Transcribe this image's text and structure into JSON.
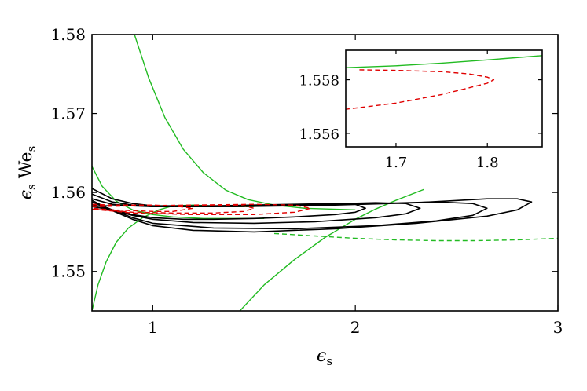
{
  "chart_data": [
    {
      "type": "line",
      "xlabel": "ϵs",
      "ylabel": "ϵs Wes",
      "xlim": [
        0.7,
        3.0
      ],
      "ylim": [
        1.545,
        1.58
      ],
      "xticks": [
        1,
        2,
        3
      ],
      "xtick_labels": [
        "1",
        "2",
        "3"
      ],
      "yticks": [
        1.55,
        1.56,
        1.57,
        1.58
      ],
      "ytick_labels": [
        "1.55",
        "1.56",
        "1.57",
        "1.58"
      ],
      "grid": false,
      "colors": {
        "green": "#22bb22",
        "red": "#e00000",
        "black": "#000000"
      },
      "series": [
        {
          "color": "green",
          "style": "solid",
          "x": [
            0.91,
            0.98,
            1.06,
            1.15,
            1.25,
            1.36,
            1.47,
            1.6,
            1.75,
            2.0
          ],
          "y": [
            1.58,
            1.5745,
            1.5695,
            1.5655,
            1.5625,
            1.5603,
            1.5591,
            1.5584,
            1.558,
            1.5578
          ]
        },
        {
          "color": "green",
          "style": "solid",
          "x": [
            0.7,
            0.75,
            0.82,
            0.9,
            1.0,
            1.1,
            1.25,
            1.4,
            1.55
          ],
          "y": [
            1.5633,
            1.5608,
            1.5589,
            1.5578,
            1.5572,
            1.5569,
            1.5567,
            1.5567,
            1.5567
          ]
        },
        {
          "color": "green",
          "style": "solid",
          "x": [
            0.7,
            0.73,
            0.77,
            0.82,
            0.88,
            0.95,
            1.03,
            1.1,
            1.2,
            1.3,
            1.4,
            1.5
          ],
          "y": [
            1.545,
            1.5483,
            1.5512,
            1.5537,
            1.5555,
            1.5568,
            1.5578,
            1.5583,
            1.5584,
            1.5583,
            1.5582,
            1.5582
          ]
        },
        {
          "color": "green",
          "style": "solid",
          "x": [
            1.43,
            1.55,
            1.7,
            1.85,
            2.0,
            2.1,
            2.2,
            2.34
          ],
          "y": [
            1.545,
            1.5483,
            1.5515,
            1.5543,
            1.5566,
            1.5579,
            1.559,
            1.5604
          ]
        },
        {
          "color": "green",
          "style": "dashed",
          "x": [
            1.6,
            1.8,
            2.0,
            2.2,
            2.4,
            2.6,
            2.8,
            3.0
          ],
          "y": [
            1.5548,
            1.5545,
            1.5542,
            1.554,
            1.5539,
            1.5539,
            1.554,
            1.5542
          ]
        },
        {
          "color": "black",
          "style": "solid",
          "x": [
            0.7,
            0.75,
            0.82,
            0.9,
            1.0,
            1.15,
            1.3,
            1.5,
            1.7,
            1.9,
            2.0,
            2.05,
            2.0,
            1.9,
            1.7,
            1.5,
            1.3,
            1.15,
            1.0,
            0.9,
            0.8,
            0.7
          ],
          "y": [
            1.5582,
            1.5583,
            1.5583,
            1.5583,
            1.5583,
            1.5583,
            1.5583,
            1.5584,
            1.5585,
            1.5586,
            1.5585,
            1.558,
            1.5575,
            1.5572,
            1.5569,
            1.5567,
            1.5566,
            1.5566,
            1.5568,
            1.5572,
            1.5578,
            1.5582
          ]
        },
        {
          "color": "black",
          "style": "solid",
          "x": [
            0.7,
            0.8,
            0.9,
            1.0,
            1.2,
            1.5,
            1.8,
            2.1,
            2.25,
            2.32,
            2.25,
            2.1,
            1.8,
            1.5,
            1.2,
            1.0,
            0.9,
            0.8,
            0.7
          ],
          "y": [
            1.5592,
            1.5585,
            1.5583,
            1.5582,
            1.5582,
            1.5583,
            1.5585,
            1.5587,
            1.5586,
            1.558,
            1.5573,
            1.5568,
            1.5563,
            1.5561,
            1.5562,
            1.5566,
            1.5571,
            1.5578,
            1.5585
          ]
        },
        {
          "color": "black",
          "style": "solid",
          "x": [
            0.7,
            0.8,
            0.9,
            1.0,
            1.3,
            1.7,
            2.1,
            2.4,
            2.58,
            2.65,
            2.58,
            2.4,
            2.1,
            1.7,
            1.3,
            1.0,
            0.9,
            0.8,
            0.7
          ],
          "y": [
            1.5598,
            1.5588,
            1.5584,
            1.5582,
            1.5582,
            1.5584,
            1.5586,
            1.5588,
            1.5586,
            1.558,
            1.5571,
            1.5564,
            1.5558,
            1.5554,
            1.5555,
            1.5561,
            1.5568,
            1.5578,
            1.5588
          ]
        },
        {
          "color": "black",
          "style": "solid",
          "x": [
            0.7,
            0.8,
            0.9,
            1.0,
            1.4,
            1.9,
            2.3,
            2.65,
            2.8,
            2.87,
            2.8,
            2.65,
            2.3,
            1.9,
            1.5,
            1.2,
            1.0,
            0.9,
            0.8,
            0.7
          ],
          "y": [
            1.5605,
            1.5592,
            1.5586,
            1.5583,
            1.5582,
            1.5584,
            1.5587,
            1.5592,
            1.5592,
            1.5588,
            1.5578,
            1.557,
            1.5561,
            1.5554,
            1.555,
            1.5552,
            1.5558,
            1.5566,
            1.5577,
            1.559
          ]
        },
        {
          "color": "red",
          "style": "dashed",
          "x": [
            0.7,
            0.8,
            0.9,
            1.0,
            1.1,
            1.2,
            1.1,
            1.0,
            0.9,
            0.8,
            0.7
          ],
          "y": [
            1.5585,
            1.5584,
            1.5584,
            1.5584,
            1.5583,
            1.558,
            1.5576,
            1.5576,
            1.5577,
            1.5578,
            1.558
          ]
        },
        {
          "color": "red",
          "style": "dashed",
          "x": [
            0.7,
            0.9,
            1.1,
            1.3,
            1.45,
            1.5,
            1.45,
            1.3,
            1.1,
            0.9,
            0.7
          ],
          "y": [
            1.5583,
            1.5583,
            1.5583,
            1.5584,
            1.5583,
            1.558,
            1.5576,
            1.5574,
            1.5574,
            1.5575,
            1.5579
          ]
        },
        {
          "color": "red",
          "style": "dashed",
          "x": [
            0.7,
            0.9,
            1.2,
            1.5,
            1.7,
            1.78,
            1.7,
            1.5,
            1.2,
            0.9,
            0.7
          ],
          "y": [
            1.5582,
            1.5583,
            1.5584,
            1.5585,
            1.5584,
            1.558,
            1.5575,
            1.5572,
            1.5572,
            1.5574,
            1.5579
          ]
        }
      ]
    },
    {
      "type": "line",
      "inset": true,
      "xlim": [
        1.645,
        1.86
      ],
      "ylim": [
        1.5555,
        1.5591
      ],
      "xticks": [
        1.7,
        1.8
      ],
      "xtick_labels": [
        "1.7",
        "1.8"
      ],
      "yticks": [
        1.556,
        1.558
      ],
      "ytick_labels": [
        "1.556",
        "1.558"
      ],
      "series": [
        {
          "color": "green",
          "style": "solid",
          "x": [
            1.645,
            1.7,
            1.75,
            1.8,
            1.86
          ],
          "y": [
            1.55845,
            1.55852,
            1.55862,
            1.55874,
            1.5589
          ]
        },
        {
          "color": "red",
          "style": "dashed",
          "x": [
            1.66,
            1.7,
            1.75,
            1.78,
            1.8,
            1.807,
            1.8,
            1.78,
            1.75,
            1.7,
            1.645
          ],
          "y": [
            1.55837,
            1.55835,
            1.5583,
            1.55822,
            1.5581,
            1.558,
            1.55787,
            1.5577,
            1.55745,
            1.55713,
            1.5569
          ]
        }
      ]
    }
  ]
}
